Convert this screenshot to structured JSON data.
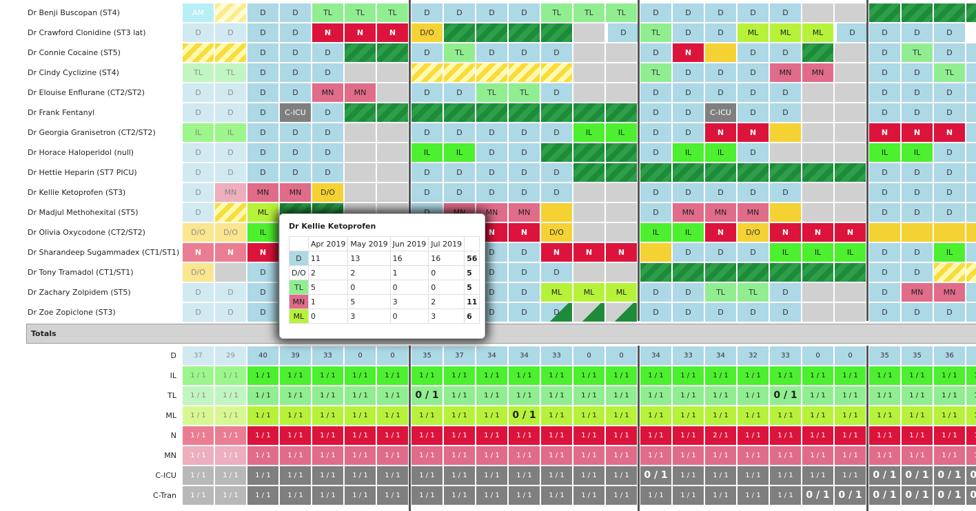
{
  "staff": [
    {
      "name": "Dr Benji Buscopan (ST4)",
      "cells": [
        [
          "AM",
          "AM",
          1
        ],
        [
          "",
          "ystr",
          1
        ],
        "D",
        "D",
        "TL",
        "TL",
        "TL",
        "|",
        "D",
        "D",
        "D",
        "D",
        "TL",
        "TL",
        "TL",
        "|",
        "D",
        "D",
        "D",
        "D",
        "D",
        [
          "",
          "grey"
        ],
        [
          "",
          "grey"
        ],
        "|",
        [
          "",
          "gstr"
        ],
        [
          "",
          "gstr"
        ],
        [
          "",
          "gstr"
        ],
        [
          "",
          "gstr"
        ]
      ]
    },
    {
      "name": "Dr Crawford Clonidine (ST3 lat)",
      "cells": [
        [
          "D",
          "D",
          1
        ],
        [
          "D",
          "D",
          1
        ],
        "D",
        "D",
        "N",
        "N",
        "N",
        "|",
        "DO",
        "gstr",
        "gstr",
        "gstr",
        "gstr",
        [
          "",
          "grey"
        ],
        "|",
        "D",
        "TL",
        "D",
        "D",
        "ML",
        "ML",
        "ML",
        "|",
        "D",
        "D",
        "D",
        "D"
      ]
    },
    {
      "name": "Dr Connie Cocaine (ST5)",
      "cells": [
        [
          "",
          "ystr"
        ],
        [
          "",
          "ystr"
        ],
        "D",
        "D",
        "D",
        "gstr",
        "gstr",
        "|",
        "D",
        "TL",
        "D",
        "D",
        "D",
        [
          "",
          "grey"
        ],
        [
          "",
          "grey"
        ],
        "|",
        "D",
        "N",
        [
          "",
          "yel"
        ],
        "D",
        "D",
        "gstr",
        [
          "",
          "grey"
        ],
        "|",
        "D",
        "TL",
        "D",
        "D"
      ]
    },
    {
      "name": "Dr Cindy Cyclizine (ST4)",
      "cells": [
        [
          "TL",
          "TL",
          1
        ],
        [
          "TL",
          "TL",
          1
        ],
        "D",
        "D",
        "D",
        [
          "",
          "grey"
        ],
        [
          "",
          "grey"
        ],
        "|",
        [
          "",
          "ystr"
        ],
        [
          "",
          "ystr"
        ],
        [
          "",
          "ystr"
        ],
        [
          "",
          "ystr"
        ],
        [
          "",
          "ystr"
        ],
        [
          "",
          "grey"
        ],
        [
          "",
          "grey"
        ],
        "|",
        "TL",
        "D",
        "D",
        "D",
        "MN",
        "MN",
        [
          "",
          "grey"
        ],
        "|",
        "D",
        "D",
        "TL",
        "D"
      ]
    },
    {
      "name": "Dr Elouise Enflurane (CT2/ST2)",
      "cells": [
        [
          "D",
          "D",
          1
        ],
        [
          "D",
          "D",
          1
        ],
        "D",
        "D",
        "MN",
        "MN",
        [
          "",
          "grey"
        ],
        "|",
        "D",
        "D",
        "TL",
        "TL",
        "D",
        [
          "",
          "grey"
        ],
        [
          "",
          "grey"
        ],
        "|",
        "D",
        "D",
        "D",
        "D",
        "D",
        [
          "",
          "grey"
        ],
        [
          "",
          "grey"
        ],
        "|",
        "D",
        "D",
        "D",
        "D"
      ]
    },
    {
      "name": "Dr Frank Fentanyl",
      "cells": [
        [
          "D",
          "D",
          1
        ],
        [
          "D",
          "D",
          1
        ],
        "D",
        "CICU",
        "D",
        "gstr",
        "gstr",
        "|",
        "gstr",
        "gstr",
        "gstr",
        "gstr",
        "gstr",
        "gstr",
        "gstr",
        "|",
        "D",
        "D",
        "CICU",
        "D",
        "D",
        [
          "",
          "grey"
        ],
        [
          "",
          "grey"
        ],
        "|",
        "D",
        "D",
        "D",
        "D"
      ]
    },
    {
      "name": "Dr Georgia Granisetron (CT2/ST2)",
      "cells": [
        [
          "IL",
          "IL",
          1
        ],
        [
          "IL",
          "IL",
          1
        ],
        "D",
        "D",
        "D",
        [
          "",
          "grey"
        ],
        [
          "",
          "grey"
        ],
        "|",
        "D",
        "D",
        "D",
        "D",
        "D",
        "IL",
        "IL",
        "|",
        "D",
        "D",
        "N",
        "N",
        [
          "",
          "yel"
        ],
        [
          "",
          "grey"
        ],
        [
          "",
          "grey"
        ],
        "|",
        "N",
        "N",
        "N",
        "D"
      ]
    },
    {
      "name": "Dr Horace Haloperidol (null)",
      "cells": [
        [
          "D",
          "D",
          1
        ],
        [
          "D",
          "D",
          1
        ],
        "D",
        "D",
        "D",
        [
          "",
          "grey"
        ],
        [
          "",
          "grey"
        ],
        "|",
        "IL",
        "IL",
        "D",
        "D",
        "gstr",
        "gstr",
        "gstr",
        "|",
        "D",
        "IL",
        "IL",
        "D",
        [
          "",
          "grey"
        ],
        [
          "",
          "grey"
        ],
        [
          "",
          "grey"
        ],
        "|",
        "IL",
        "IL",
        "D",
        "D"
      ]
    },
    {
      "name": "Dr Hettie Heparin (ST7 PICU)",
      "cells": [
        [
          "D",
          "D",
          1
        ],
        [
          "D",
          "D",
          1
        ],
        "D",
        "D",
        "D",
        [
          "",
          "grey"
        ],
        [
          "",
          "grey"
        ],
        "|",
        "D",
        "D",
        "D",
        "D",
        "D",
        "gstr",
        "gstr",
        "|",
        "gstr",
        "gstr",
        "gstr",
        "gstr",
        "gstr",
        "gstr",
        "gstr",
        "|",
        "D",
        "D",
        "D",
        "D"
      ]
    },
    {
      "name": "Dr Kellie Ketoprofen (ST3)",
      "cells": [
        [
          "D",
          "D",
          1
        ],
        [
          "MN",
          "MN",
          1
        ],
        "MN",
        "MN",
        "DO",
        [
          "",
          "grey"
        ],
        [
          "",
          "grey"
        ],
        "|",
        "D",
        "D",
        "D",
        "D",
        "D",
        [
          "",
          "grey"
        ],
        [
          "",
          "grey"
        ],
        "|",
        "D",
        "D",
        "D",
        "D",
        "D",
        [
          "",
          "grey"
        ],
        [
          "",
          "grey"
        ],
        "|",
        "D",
        "D",
        "D",
        "D"
      ]
    },
    {
      "name": "Dr Madjul Methohexital (ST5)",
      "cells": [
        [
          "D",
          "D",
          1
        ],
        [
          "",
          "ystr"
        ],
        "ML",
        "gstr",
        "gstr",
        [
          "",
          "grey"
        ],
        [
          "",
          "grey"
        ],
        "|",
        "D",
        "MN",
        "MN",
        "MN",
        "yel",
        [
          "",
          "grey"
        ],
        [
          "",
          "grey"
        ],
        "|",
        "D",
        "MN",
        "MN",
        "MN",
        [
          "",
          "yel"
        ],
        [
          "",
          "grey"
        ],
        [
          "",
          "grey"
        ],
        "|",
        "D",
        "D",
        "D",
        "D"
      ]
    },
    {
      "name": "Dr Olivia Oxycodone (CT2/ST2)",
      "cells": [
        [
          "DO",
          "D/O",
          1
        ],
        [
          "DO",
          "D/O",
          1
        ],
        "IL",
        "D",
        "D",
        [
          "",
          "grey"
        ],
        [
          "",
          "grey"
        ],
        "|",
        "N",
        "N",
        "N",
        "N",
        "DO",
        [
          "",
          "grey"
        ],
        [
          "",
          "grey"
        ],
        "|",
        "IL",
        "IL",
        "N",
        "DO",
        "N",
        "N",
        "N",
        "|",
        [
          "",
          "yel"
        ],
        [
          "",
          "yel"
        ],
        [
          "",
          "yel"
        ],
        [
          "",
          "yel"
        ]
      ]
    },
    {
      "name": "Dr Sharandeep Sugammadex (CT1/ST1)",
      "cells": [
        [
          "N",
          "N",
          1
        ],
        [
          "N",
          "N",
          1
        ],
        "N",
        "D",
        "D",
        [
          "",
          "grey"
        ],
        [
          "",
          "grey"
        ],
        "|",
        "D",
        "D",
        "D",
        "D",
        "N",
        "N",
        "N",
        "|",
        [
          "",
          "yel"
        ],
        "D",
        "D",
        "D",
        "IL",
        "IL",
        "IL",
        "|",
        "D",
        "D",
        "IL",
        "D"
      ]
    },
    {
      "name": "Dr Tony Tramadol (CT1/ST1)",
      "cells": [
        [
          "DO",
          "D/O",
          1
        ],
        [
          "",
          "grey"
        ],
        "D",
        "D",
        "D",
        [
          "",
          "grey"
        ],
        [
          "",
          "grey"
        ],
        "|",
        "D",
        "D",
        "D",
        "D",
        "D",
        [
          "",
          "grey"
        ],
        [
          "",
          "grey"
        ],
        "|",
        "gstr",
        "gstr",
        "gstr",
        "gstr",
        "gstr",
        "gstr",
        "gstr",
        "|",
        "D",
        "D",
        [
          "",
          "ystr"
        ],
        [
          "",
          "ystr"
        ]
      ]
    },
    {
      "name": "Dr Zachary Zolpidem (ST5)",
      "cells": [
        [
          "D",
          "D",
          1
        ],
        [
          "D",
          "D",
          1
        ],
        "D",
        "D",
        "D",
        [
          "",
          "grey"
        ],
        [
          "",
          "grey"
        ],
        "|",
        "D",
        "D",
        "D",
        "D",
        "ML",
        "ML",
        "ML",
        "|",
        "D",
        "D",
        "TL",
        "TL",
        "D",
        [
          "",
          "grey"
        ],
        [
          "",
          "grey"
        ],
        "|",
        "D",
        "MN",
        "MN",
        "D"
      ]
    },
    {
      "name": "Dr Zoe Zopiclone (ST3)",
      "cells": [
        [
          "D",
          "D",
          1
        ],
        [
          "D",
          "D",
          1
        ],
        "D",
        "D",
        "D",
        [
          "",
          "grey"
        ],
        [
          "",
          "grey"
        ],
        "|",
        "D",
        "D",
        "D",
        "D",
        [
          "D",
          "tri"
        ],
        [
          "",
          "trig"
        ],
        [
          "",
          "trig"
        ],
        "|",
        "D",
        "D",
        "D",
        "D",
        "D",
        [
          "",
          "grey"
        ],
        [
          "",
          "grey"
        ],
        "|",
        "D",
        "D",
        "D",
        "D"
      ]
    }
  ],
  "totals_label": "Totals",
  "totals": [
    {
      "label": "D",
      "cls": "tot-D",
      "vals": [
        "37",
        "29",
        "40",
        "39",
        "33",
        "0",
        "0",
        "|",
        "35",
        "37",
        "34",
        "34",
        "33",
        "0",
        "0",
        "|",
        "34",
        "33",
        "34",
        "32",
        "33",
        "0",
        "0",
        "|",
        "35",
        "35",
        "36",
        "34"
      ]
    },
    {
      "label": "IL",
      "cls": "tot-IL",
      "vals": [
        "1 / 1",
        "1 / 1",
        "1 / 1",
        "1 / 1",
        "1 / 1",
        "1 / 1",
        "1 / 1",
        "|",
        "1 / 1",
        "1 / 1",
        "1 / 1",
        "1 / 1",
        "1 / 1",
        "1 / 1",
        "1 / 1",
        "|",
        "1 / 1",
        "1 / 1",
        "1 / 1",
        "1 / 1",
        "1 / 1",
        "1 / 1",
        "1 / 1",
        "|",
        "1 / 1",
        "1 / 1",
        "1 / 1",
        "1 / 1"
      ]
    },
    {
      "label": "TL",
      "cls": "tot-TL",
      "vals": [
        "1 / 1",
        "1 / 1",
        "1 / 1",
        "1 / 1",
        "1 / 1",
        "1 / 1",
        "1 / 1",
        "|",
        "0 / 1",
        "1 / 1",
        "1 / 1",
        "1 / 1",
        "1 / 1",
        "1 / 1",
        "1 / 1",
        "|",
        "1 / 1",
        "1 / 1",
        "1 / 1",
        "1 / 1",
        "0 / 1",
        "1 / 1",
        "1 / 1",
        "|",
        "1 / 1",
        "1 / 1",
        "1 / 1",
        "1 / 1"
      ]
    },
    {
      "label": "ML",
      "cls": "tot-ML",
      "vals": [
        "1 / 1",
        "1 / 1",
        "1 / 1",
        "1 / 1",
        "1 / 1",
        "1 / 1",
        "1 / 1",
        "|",
        "1 / 1",
        "1 / 1",
        "1 / 1",
        "0 / 1",
        "1 / 1",
        "1 / 1",
        "1 / 1",
        "|",
        "1 / 1",
        "1 / 1",
        "1 / 1",
        "1 / 1",
        "1 / 1",
        "1 / 1",
        "1 / 1",
        "|",
        "1 / 1",
        "1 / 1",
        "1 / 1",
        "1 / 1"
      ]
    },
    {
      "label": "N",
      "cls": "tot-N",
      "vals": [
        "1 / 1",
        "1 / 1",
        "1 / 1",
        "1 / 1",
        "1 / 1",
        "1 / 1",
        "1 / 1",
        "|",
        "1 / 1",
        "1 / 1",
        "1 / 1",
        "1 / 1",
        "1 / 1",
        "1 / 1",
        "1 / 1",
        "|",
        "1 / 1",
        "1 / 1",
        "2 / 1",
        "1 / 1",
        "1 / 1",
        "1 / 1",
        "1 / 1",
        "|",
        "1 / 1",
        "1 / 1",
        "1 / 1",
        "1 / 1"
      ]
    },
    {
      "label": "MN",
      "cls": "tot-MN",
      "vals": [
        "1 / 1",
        "1 / 1",
        "1 / 1",
        "1 / 1",
        "1 / 1",
        "1 / 1",
        "1 / 1",
        "|",
        "1 / 1",
        "1 / 1",
        "1 / 1",
        "1 / 1",
        "1 / 1",
        "1 / 1",
        "1 / 1",
        "|",
        "1 / 1",
        "1 / 1",
        "1 / 1",
        "1 / 1",
        "1 / 1",
        "1 / 1",
        "1 / 1",
        "|",
        "1 / 1",
        "1 / 1",
        "1 / 1",
        "1 / 1"
      ]
    },
    {
      "label": "C-ICU",
      "cls": "tot-C",
      "vals": [
        "1 / 1",
        "1 / 1",
        "1 / 1",
        "1 / 1",
        "1 / 1",
        "1 / 1",
        "1 / 1",
        "|",
        "1 / 1",
        "1 / 1",
        "1 / 1",
        "1 / 1",
        "1 / 1",
        "1 / 1",
        "1 / 1",
        "|",
        "0 / 1",
        "1 / 1",
        "1 / 1",
        "1 / 1",
        "1 / 1",
        "1 / 1",
        "1 / 1",
        "|",
        "0 / 1",
        "0 / 1",
        "0 / 1",
        "0 / 1"
      ]
    },
    {
      "label": "C-Tran",
      "cls": "tot-C",
      "vals": [
        "1 / 1",
        "1 / 1",
        "1 / 1",
        "1 / 1",
        "1 / 1",
        "1 / 1",
        "1 / 1",
        "|",
        "1 / 1",
        "1 / 1",
        "1 / 1",
        "1 / 1",
        "1 / 1",
        "1 / 1",
        "1 / 1",
        "|",
        "1 / 1",
        "1 / 1",
        "1 / 1",
        "1 / 1",
        "1 / 1",
        "0 / 1",
        "0 / 1",
        "|",
        "0 / 1",
        "0 / 1",
        "0 / 1",
        "0 / 1"
      ]
    }
  ],
  "shift_labels": {
    "D": "D",
    "TL": "TL",
    "IL": "IL",
    "ML": "ML",
    "N": "N",
    "MN": "MN",
    "DO": "D/O",
    "CICU": "C-ICU",
    "AM": "AM"
  },
  "popup": {
    "title": "Dr Kellie Ketoprofen",
    "months": [
      "Apr 2019",
      "May 2019",
      "Jun 2019",
      "Jul 2019"
    ],
    "rows": [
      {
        "label": "D",
        "cls": "D",
        "vals": [
          "11",
          "13",
          "16",
          "16"
        ],
        "total": "56"
      },
      {
        "label": "D/O",
        "cls": "",
        "vals": [
          "2",
          "2",
          "1",
          "0"
        ],
        "total": "5"
      },
      {
        "label": "TL",
        "cls": "TL",
        "vals": [
          "5",
          "0",
          "0",
          "0"
        ],
        "total": "5"
      },
      {
        "label": "MN",
        "cls": "MN",
        "vals": [
          "1",
          "5",
          "3",
          "2"
        ],
        "total": "11"
      },
      {
        "label": "ML",
        "cls": "ML",
        "vals": [
          "0",
          "3",
          "0",
          "3"
        ],
        "total": "6"
      }
    ]
  }
}
